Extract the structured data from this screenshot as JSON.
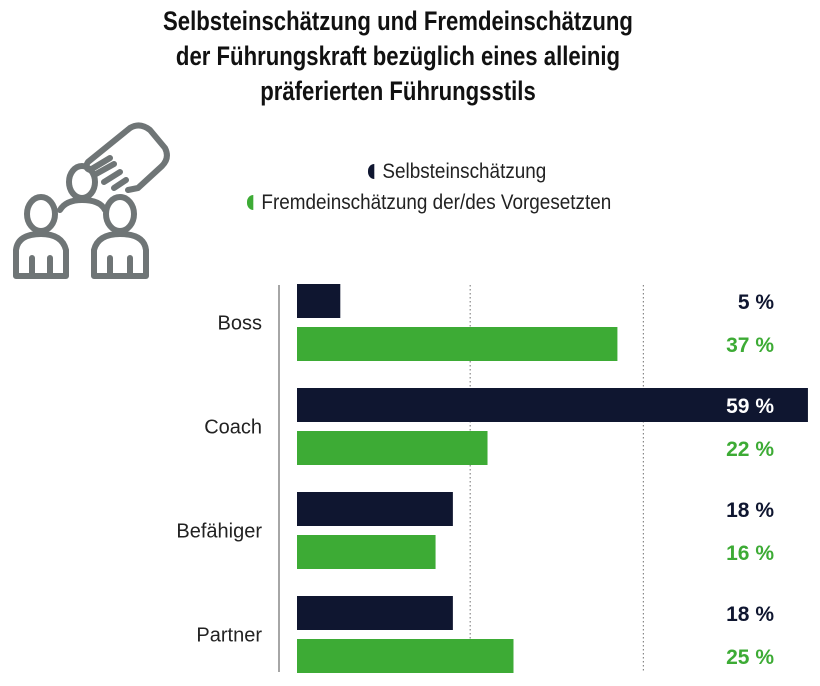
{
  "chart_data": {
    "type": "bar",
    "orientation": "horizontal",
    "title": [
      "Selbsteinschätzung und Fremdeinschätzung",
      "der Führungskraft bezüglich eines alleinig",
      "präferierten Führungsstils"
    ],
    "categories": [
      "Boss",
      "Coach",
      "Befähiger",
      "Partner"
    ],
    "series": [
      {
        "name": "Selbsteinschätzung",
        "color": "#0f1630",
        "values": [
          5,
          59,
          18,
          18
        ],
        "labels": [
          "5 %",
          "59 %",
          "18 %",
          "18 %"
        ]
      },
      {
        "name": "Fremdeinschätzung der/des Vorgesetzten",
        "color": "#3dab35",
        "values": [
          37,
          22,
          16,
          25
        ],
        "labels": [
          "37 %",
          "22 %",
          "16 %",
          "25 %"
        ]
      }
    ],
    "unit": "%",
    "xlim": [
      0,
      59
    ],
    "grid": {
      "vertical_dotted_at": [
        20,
        40
      ]
    },
    "legend_position": "top",
    "icon": "people-with-pointing-hand-icon"
  }
}
